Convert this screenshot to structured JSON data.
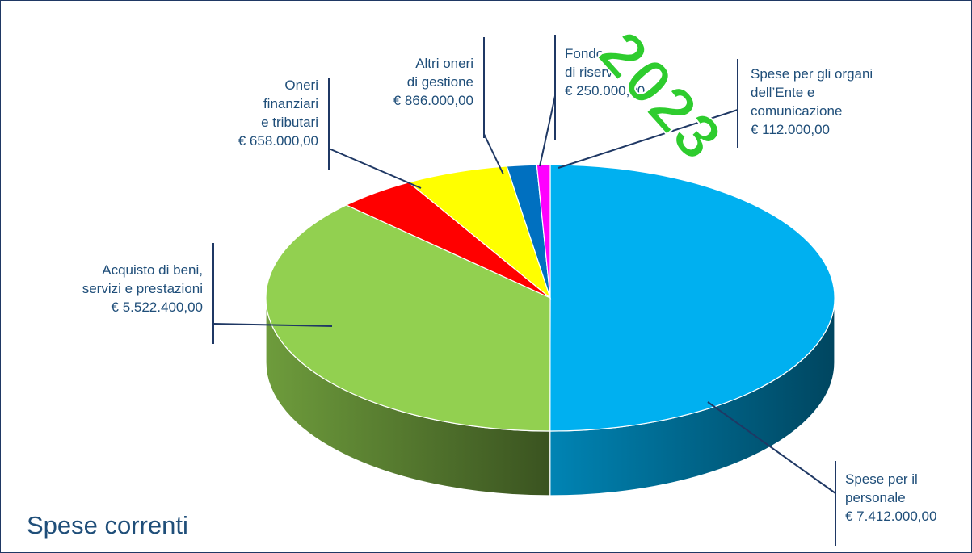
{
  "chart_data": {
    "type": "pie",
    "title": "Spese correnti",
    "watermark": "2023",
    "categories": [
      "Spese per il\npersonale",
      "Acquisto di beni,\nservizi e prestazioni",
      "Oneri\nfinanziari\ne tributari",
      "Altri oneri\ndi gestione",
      "Fondo\ndi riserva",
      "Spese per gli organi\ndell’Ente e\ncomunicazione"
    ],
    "values": [
      7412000,
      5522400,
      658000,
      866000,
      250000,
      112000
    ],
    "value_labels": [
      "€ 7.412.000,00",
      "€ 5.522.400,00",
      "€ 658.000,00",
      "€ 866.000,00",
      "€ 250.000,00",
      "€ 112.000,00"
    ],
    "colors": [
      "#00b0f0",
      "#92d050",
      "#ff0000",
      "#ffff00",
      "#0070c0",
      "#ff00ff"
    ]
  }
}
